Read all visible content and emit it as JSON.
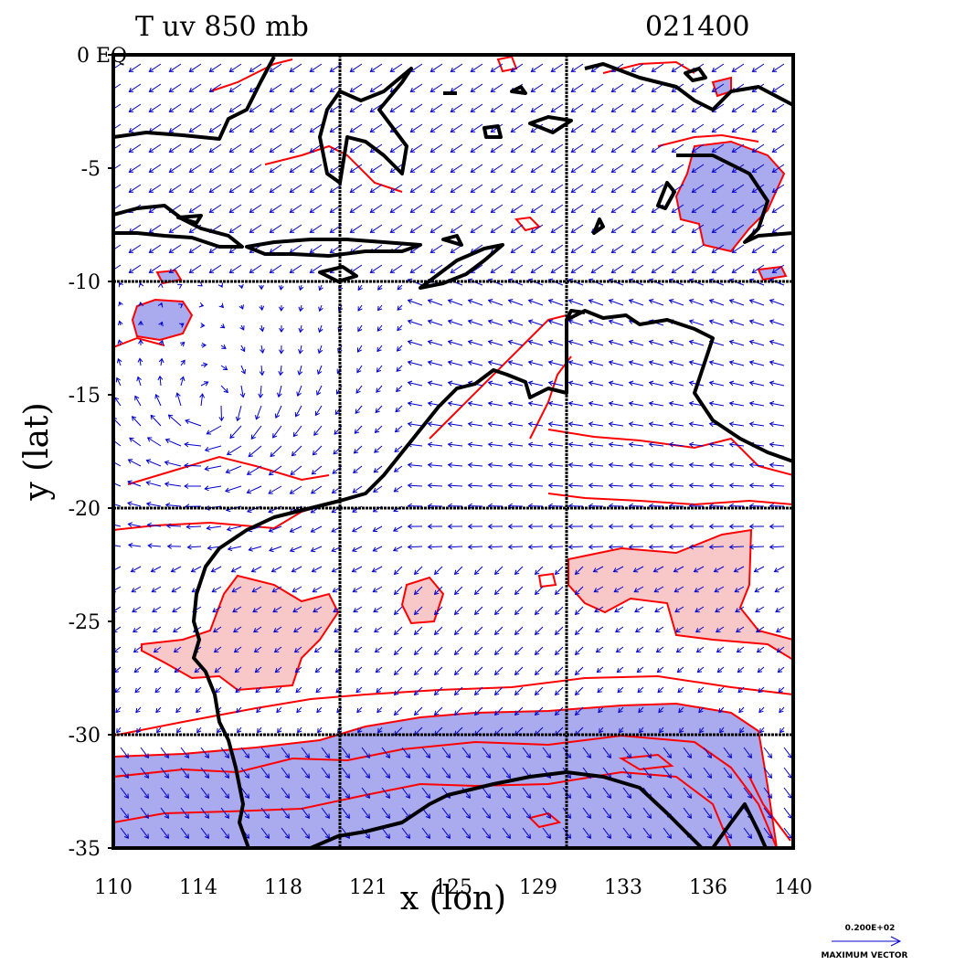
{
  "title_left": "T uv 850 mb",
  "title_right": "021400",
  "y_axis_label": "y (lat)",
  "x_axis_label": "x (lon)",
  "y_ticks": [
    "0 EQ",
    "-5",
    "-10",
    "-15",
    "-20",
    "-25",
    "-30",
    "-35"
  ],
  "x_ticks": [
    "110",
    "114",
    "118",
    "121",
    "125",
    "129",
    "133",
    "136",
    "140"
  ],
  "legend": {
    "value": "0.200E+02",
    "label": "MAXIMUM VECTOR"
  },
  "colors": {
    "coast": "#000000",
    "contour": "#ff0000",
    "vector": "#0000cc",
    "cold_fill": "#aaaaee",
    "warm_fill": "#f8c8c8",
    "grid": "#000000"
  },
  "grid": {
    "lon_lines": [
      120,
      130
    ],
    "lat_lines": [
      -10,
      -20,
      -30
    ]
  }
}
